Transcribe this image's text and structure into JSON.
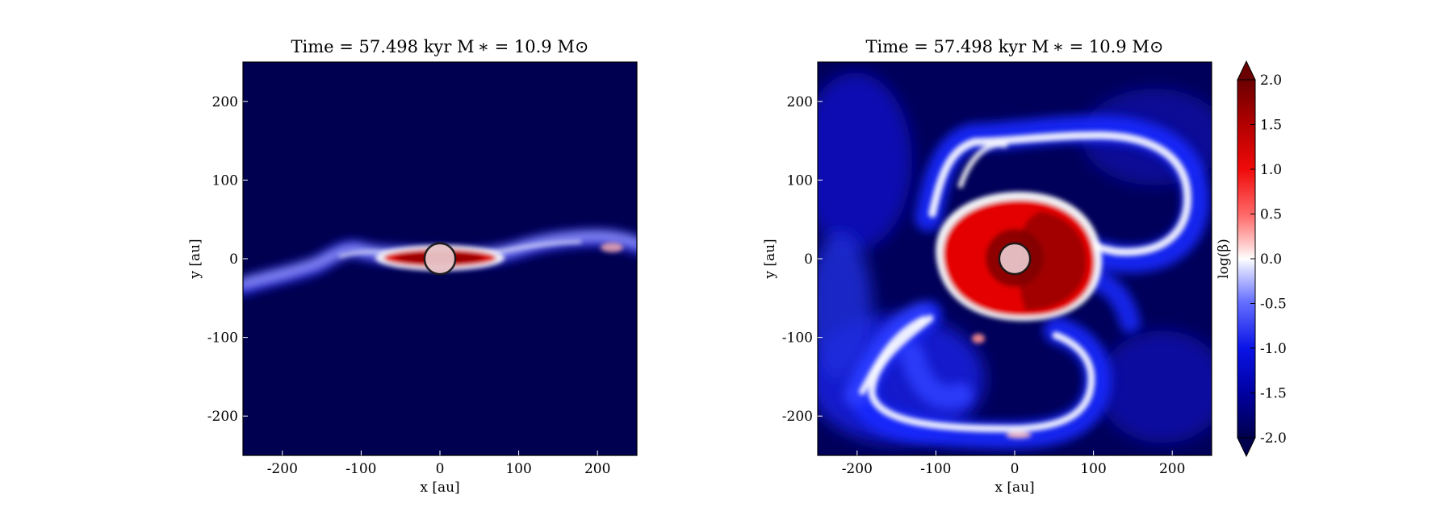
{
  "chart_data": [
    {
      "type": "heatmap",
      "title": "Time = 57.498 kyr    M ∗ = 10.9 M⊙",
      "xlabel": "x [au]",
      "ylabel": "y [au]",
      "xlim": [
        -250,
        250
      ],
      "ylim": [
        -250,
        250
      ],
      "xticks": [
        "-200",
        "-100",
        "0",
        "100",
        "200"
      ],
      "yticks": [
        "200",
        "100",
        "0",
        "-100",
        "-200"
      ],
      "xtick_values": [
        -200,
        -100,
        0,
        100,
        200
      ],
      "ytick_values": [
        200,
        100,
        0,
        -100,
        -200
      ],
      "grid": false,
      "field": "log(β) in the midplane; thin edge-on disk structure",
      "sink_particle": {
        "x": 0,
        "y": 0,
        "radius": 20
      }
    },
    {
      "type": "heatmap",
      "title": "Time = 57.498 kyr    M ∗ = 10.9 M⊙",
      "xlabel": "x [au]",
      "ylabel": "y [au]",
      "xlim": [
        -250,
        250
      ],
      "ylim": [
        -250,
        250
      ],
      "xticks": [
        "-200",
        "-100",
        "0",
        "100",
        "200"
      ],
      "yticks": [
        "200",
        "100",
        "0",
        "-100",
        "-200"
      ],
      "xtick_values": [
        -200,
        -100,
        0,
        100,
        200
      ],
      "ytick_values": [
        200,
        100,
        0,
        -100,
        -200
      ],
      "grid": false,
      "field": "log(β) face-on; red disk core with blue/white spiral arms",
      "sink_particle": {
        "x": 0,
        "y": 0,
        "radius": 20
      }
    }
  ],
  "colorbar": {
    "label": "log(β)",
    "range": [
      -2.0,
      2.0
    ],
    "ticks": [
      "2.0",
      "1.5",
      "1.0",
      "0.5",
      "0.0",
      "-0.5",
      "-1.0",
      "-1.5",
      "-2.0"
    ],
    "tick_values": [
      2.0,
      1.5,
      1.0,
      0.5,
      0.0,
      -0.5,
      -1.0,
      -1.5,
      -2.0
    ],
    "colors": {
      "low": "#00004d",
      "mid": "#ffffff",
      "high": "#6b0000"
    },
    "extend": "both"
  }
}
